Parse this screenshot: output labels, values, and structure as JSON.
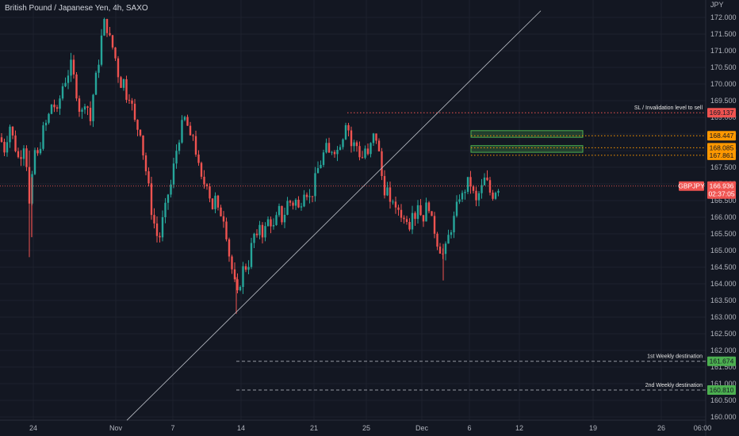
{
  "header": {
    "title": "British Pound / Japanese Yen, 4h, SAXO"
  },
  "colors": {
    "background": "#131722",
    "grid": "#1e222d",
    "up_candle": "#26a69a",
    "down_candle": "#ef5350",
    "level_red": "#ef5350",
    "level_orange": "#ff9800",
    "level_green": "#4caf50",
    "trendline": "#c0c4cc"
  },
  "chart_data": {
    "type": "candlestick",
    "symbol": "GBPJPY",
    "currency": "JPY",
    "interval": "4h",
    "ylim": [
      159.9,
      172.3
    ],
    "y_ticks": [
      "172.000",
      "171.500",
      "171.000",
      "170.500",
      "170.000",
      "169.500",
      "169.000",
      "168.500",
      "168.000",
      "167.500",
      "167.000",
      "166.500",
      "166.000",
      "165.500",
      "165.000",
      "164.500",
      "164.000",
      "163.500",
      "163.000",
      "162.500",
      "162.000",
      "161.500",
      "161.000",
      "160.500",
      "160.000"
    ],
    "x_labels": [
      "24",
      "Nov",
      "7",
      "14",
      "21",
      "25",
      "Dec",
      "6",
      "12",
      "19",
      "26",
      "06:00"
    ],
    "grid": true,
    "path_points": [
      [
        0,
        168.4
      ],
      [
        6,
        168.0
      ],
      [
        12,
        168.8
      ],
      [
        18,
        168.2
      ],
      [
        24,
        167.7
      ],
      [
        30,
        168.2
      ],
      [
        36,
        167.2
      ],
      [
        38,
        165.5
      ],
      [
        42,
        168.1
      ],
      [
        48,
        167.8
      ],
      [
        54,
        168.6
      ],
      [
        60,
        168.9
      ],
      [
        66,
        169.5
      ],
      [
        72,
        169.1
      ],
      [
        78,
        169.9
      ],
      [
        84,
        170.2
      ],
      [
        90,
        170.6
      ],
      [
        96,
        169.8
      ],
      [
        102,
        169.0
      ],
      [
        108,
        169.6
      ],
      [
        114,
        168.9
      ],
      [
        118,
        169.8
      ],
      [
        124,
        170.6
      ],
      [
        128,
        171.4
      ],
      [
        132,
        171.9
      ],
      [
        136,
        171.6
      ],
      [
        140,
        171.2
      ],
      [
        144,
        171.0
      ],
      [
        148,
        170.4
      ],
      [
        152,
        170.0
      ],
      [
        156,
        170.1
      ],
      [
        160,
        169.6
      ],
      [
        164,
        169.7
      ],
      [
        168,
        169.1
      ],
      [
        172,
        168.6
      ],
      [
        176,
        168.8
      ],
      [
        180,
        168.0
      ],
      [
        184,
        167.4
      ],
      [
        188,
        166.8
      ],
      [
        192,
        166.0
      ],
      [
        196,
        165.7
      ],
      [
        200,
        165.2
      ],
      [
        204,
        165.8
      ],
      [
        208,
        166.2
      ],
      [
        212,
        166.7
      ],
      [
        216,
        167.0
      ],
      [
        220,
        167.7
      ],
      [
        224,
        168.2
      ],
      [
        228,
        168.6
      ],
      [
        232,
        169.0
      ],
      [
        236,
        168.8
      ],
      [
        240,
        168.3
      ],
      [
        244,
        168.5
      ],
      [
        248,
        167.8
      ],
      [
        252,
        167.3
      ],
      [
        256,
        166.9
      ],
      [
        260,
        167.2
      ],
      [
        264,
        166.7
      ],
      [
        268,
        166.3
      ],
      [
        272,
        166.6
      ],
      [
        276,
        166.0
      ],
      [
        280,
        166.2
      ],
      [
        284,
        165.8
      ],
      [
        288,
        165.0
      ],
      [
        292,
        164.5
      ],
      [
        296,
        164.0
      ],
      [
        300,
        163.6
      ],
      [
        304,
        164.2
      ],
      [
        308,
        164.6
      ],
      [
        312,
        164.4
      ],
      [
        316,
        165.0
      ],
      [
        320,
        165.5
      ],
      [
        324,
        165.3
      ],
      [
        328,
        165.9
      ],
      [
        332,
        165.4
      ],
      [
        336,
        165.8
      ],
      [
        340,
        166.0
      ],
      [
        344,
        165.6
      ],
      [
        348,
        165.9
      ],
      [
        352,
        166.2
      ],
      [
        356,
        165.9
      ],
      [
        360,
        166.2
      ],
      [
        364,
        166.6
      ],
      [
        368,
        166.3
      ],
      [
        372,
        166.6
      ],
      [
        376,
        166.2
      ],
      [
        380,
        166.5
      ],
      [
        384,
        166.9
      ],
      [
        388,
        166.7
      ],
      [
        392,
        166.5
      ],
      [
        396,
        167.0
      ],
      [
        400,
        167.4
      ],
      [
        404,
        167.6
      ],
      [
        408,
        167.9
      ],
      [
        412,
        168.1
      ],
      [
        416,
        167.8
      ],
      [
        420,
        168.2
      ],
      [
        424,
        167.9
      ],
      [
        428,
        168.2
      ],
      [
        432,
        168.4
      ],
      [
        436,
        168.9
      ],
      [
        440,
        168.6
      ],
      [
        444,
        168.0
      ],
      [
        448,
        168.3
      ],
      [
        452,
        168.0
      ],
      [
        456,
        167.7
      ],
      [
        460,
        168.1
      ],
      [
        464,
        167.8
      ],
      [
        468,
        168.2
      ],
      [
        472,
        168.5
      ],
      [
        476,
        168.3
      ],
      [
        480,
        167.5
      ],
      [
        484,
        166.8
      ],
      [
        488,
        166.9
      ],
      [
        492,
        166.3
      ],
      [
        496,
        166.6
      ],
      [
        500,
        166.0
      ],
      [
        504,
        166.4
      ],
      [
        508,
        165.8
      ],
      [
        512,
        166.1
      ],
      [
        516,
        165.7
      ],
      [
        520,
        166.3
      ],
      [
        524,
        166.0
      ],
      [
        528,
        166.6
      ],
      [
        532,
        165.8
      ],
      [
        536,
        166.2
      ],
      [
        540,
        166.5
      ],
      [
        544,
        165.9
      ],
      [
        548,
        165.6
      ],
      [
        552,
        165.2
      ],
      [
        556,
        165.0
      ],
      [
        560,
        164.8
      ],
      [
        564,
        165.3
      ],
      [
        568,
        165.6
      ],
      [
        572,
        165.9
      ],
      [
        576,
        166.3
      ],
      [
        580,
        166.7
      ],
      [
        584,
        166.6
      ],
      [
        588,
        167.0
      ],
      [
        592,
        167.1
      ],
      [
        596,
        166.8
      ],
      [
        600,
        166.4
      ],
      [
        604,
        166.7
      ],
      [
        608,
        166.9
      ],
      [
        612,
        167.2
      ],
      [
        616,
        166.9
      ],
      [
        620,
        166.6
      ],
      [
        624,
        166.8
      ],
      [
        628,
        166.9
      ],
      [
        631,
        166.94
      ]
    ],
    "trendline": {
      "from": {
        "x_index": 160,
        "price": 159.9
      },
      "to": {
        "x_index": 682,
        "price": 172.2
      }
    },
    "levels": [
      {
        "price": 169.137,
        "label": "169.137",
        "name": "SL / Invalidation level to sell",
        "color": "#ef5350",
        "text_color": "#131722",
        "start_x_index": 438,
        "style": "dotted"
      },
      {
        "price": 168.447,
        "label": "168.447",
        "name": "",
        "color": "#ff9800",
        "text_color": "#131722",
        "start_x_index": 594,
        "style": "dotted"
      },
      {
        "price": 168.085,
        "label": "168.085",
        "name": "",
        "color": "#ff9800",
        "text_color": "#131722",
        "start_x_index": 594,
        "style": "dotted"
      },
      {
        "price": 167.861,
        "label": "167.861",
        "name": "",
        "color": "#ff9800",
        "text_color": "#131722",
        "start_x_index": 594,
        "style": "dotted"
      },
      {
        "price": 161.674,
        "label": "161.674",
        "name": "1st Weekly destination",
        "color": "#4caf50",
        "text_color": "#131722",
        "start_x_index": 298,
        "style": "dashed"
      },
      {
        "price": 160.81,
        "label": "160.810",
        "name": "2nd Weekly destination",
        "color": "#4caf50",
        "text_color": "#131722",
        "start_x_index": 298,
        "style": "dashed"
      }
    ],
    "zones": [
      {
        "low": 168.4,
        "high": 168.6,
        "start_x_index": 594,
        "end_x_index": 735
      },
      {
        "low": 167.95,
        "high": 168.15,
        "start_x_index": 594,
        "end_x_index": 735
      }
    ],
    "current_price": {
      "label": "166.936",
      "value": 166.936,
      "symbol_tag": "GBPJPY",
      "countdown": "02:37:05"
    }
  }
}
